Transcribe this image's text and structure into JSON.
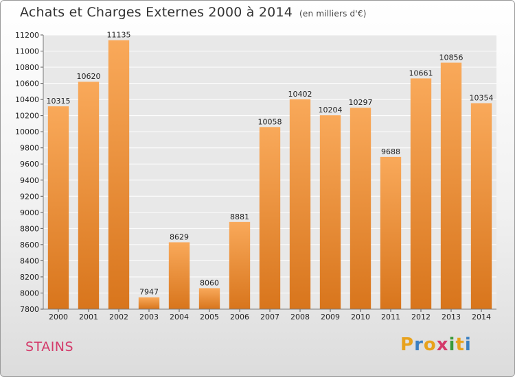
{
  "header": {
    "title": "Achats et Charges Externes 2000 à 2014",
    "subtitle": "(en milliers d'€)"
  },
  "footer": {
    "city": "STAINS",
    "brand": [
      "P",
      "r",
      "o",
      "x",
      "i",
      "t",
      "i"
    ],
    "brand_colors": [
      "#e8a21c",
      "#3a7fc1",
      "#e8a21c",
      "#d43a6a",
      "#3a9a3a",
      "#e8a21c",
      "#3a7fc1"
    ]
  },
  "chart_data": {
    "type": "bar",
    "title": "Achats et Charges Externes 2000 à 2014",
    "subtitle": "(en milliers d'€)",
    "categories": [
      "2000",
      "2001",
      "2002",
      "2003",
      "2004",
      "2005",
      "2006",
      "2007",
      "2008",
      "2009",
      "2010",
      "2011",
      "2012",
      "2013",
      "2014"
    ],
    "values": [
      10315,
      10620,
      11135,
      7947,
      8629,
      8060,
      8881,
      10058,
      10402,
      10204,
      10297,
      9688,
      10661,
      10856,
      10354
    ],
    "ylim": [
      7800,
      11200
    ],
    "yticks": [
      "7800",
      "8000",
      "8200",
      "8400",
      "8600",
      "8800",
      "9000",
      "9200",
      "9400",
      "9600",
      "9800",
      "10000",
      "10200",
      "10400",
      "10600",
      "10800",
      "11000",
      "11200"
    ],
    "grid": true,
    "bar_color_top": "#f9a95a",
    "bar_color_bottom": "#d8751c"
  }
}
